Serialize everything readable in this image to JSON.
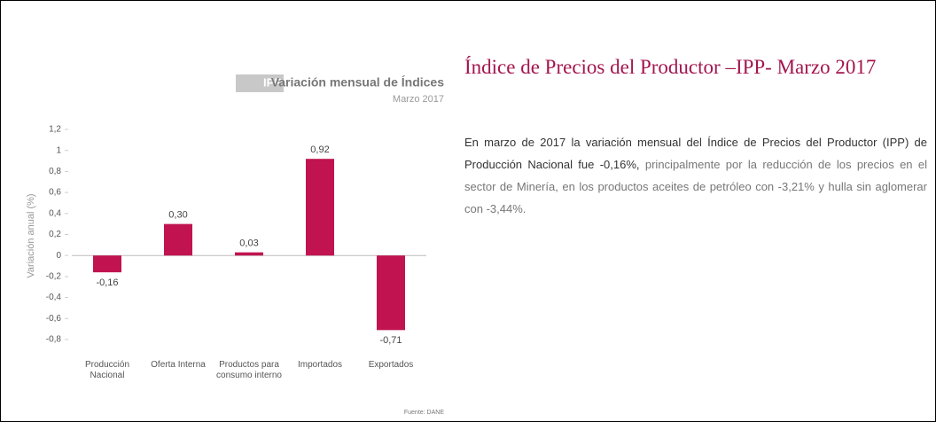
{
  "chart_data": {
    "type": "bar",
    "badge": "IPP",
    "title": "Variación mensual de Índices",
    "subtitle": "Marzo 2017",
    "y_label": "Variación anual (%)",
    "source": "Fuente: DANE",
    "categories": [
      "Producción Nacional",
      "Oferta Interna",
      "Productos para consumo interno",
      "Importados",
      "Exportados"
    ],
    "values": [
      -0.16,
      0.3,
      0.03,
      0.92,
      -0.71
    ],
    "value_labels": [
      "-0,16",
      "0,30",
      "0,03",
      "0,92",
      "-0,71"
    ],
    "color": "#c0134f",
    "ylim": [
      -0.8,
      1.2
    ],
    "yticks": [
      {
        "value": 1.2,
        "label": "1,2"
      },
      1,
      {
        "value": 0.8,
        "label": "0,8"
      },
      {
        "value": 0.6,
        "label": "0,6"
      },
      {
        "value": 0.4,
        "label": "0,4"
      },
      {
        "value": 0.2,
        "label": "0,2"
      },
      0,
      {
        "value": -0.2,
        "label": "-0,2"
      },
      {
        "value": -0.4,
        "label": "-0,4"
      },
      {
        "value": -0.6,
        "label": "-0,6"
      },
      {
        "value": -0.8,
        "label": "-0,8"
      }
    ],
    "grid": false
  },
  "article": {
    "title": "Índice de Precios del Productor –IPP- Marzo 2017",
    "paragraph_bold": "En marzo de 2017 la variación mensual del Índice de Precios del Productor (IPP) de Producción Nacional fue -0,16%,",
    "paragraph_rest": " principalmente por la reducción de los precios en el sector de Minería, en los productos aceites de petróleo con -3,21% y hulla sin aglomerar con -3,44%."
  }
}
